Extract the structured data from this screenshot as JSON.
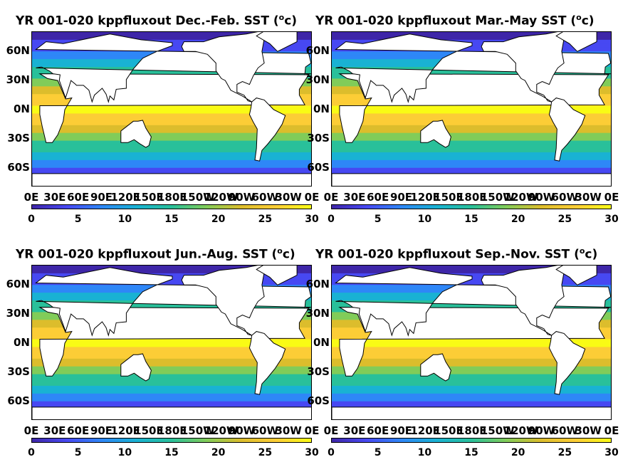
{
  "panels": [
    {
      "title_main": "YR 001-020 kppfluxout Dec.-Feb. SST (",
      "unit_sup": "o",
      "unit_end": "c)"
    },
    {
      "title_main": "YR 001-020 kppfluxout Mar.-May SST (",
      "unit_sup": "o",
      "unit_end": "c)"
    },
    {
      "title_main": "YR 001-020 kppfluxout Jun.-Aug. SST (",
      "unit_sup": "o",
      "unit_end": "c)"
    },
    {
      "title_main": "YR 001-020 kppfluxout Sep.-Nov. SST (",
      "unit_sup": "o",
      "unit_end": "c)"
    }
  ],
  "lat_ticks": [
    "60N",
    "30N",
    "0N",
    "30S",
    "60S"
  ],
  "lon_ticks": [
    "0E",
    "30E",
    "60E",
    "90E",
    "120E",
    "150E",
    "180E",
    "150W",
    "120W",
    "90W",
    "60W",
    "30W",
    "0E"
  ],
  "colorbar": {
    "ticks": [
      "0",
      "5",
      "10",
      "15",
      "20",
      "25",
      "30"
    ],
    "range": [
      0,
      30
    ],
    "colors": [
      "#3e26a8",
      "#4748f2",
      "#2e87f7",
      "#19b2d3",
      "#29c09a",
      "#81cc59",
      "#dcbd2c",
      "#fccd36",
      "#f9fb15"
    ]
  },
  "map_colors": {
    "land": "#ffffff",
    "coast": "#000000"
  }
}
